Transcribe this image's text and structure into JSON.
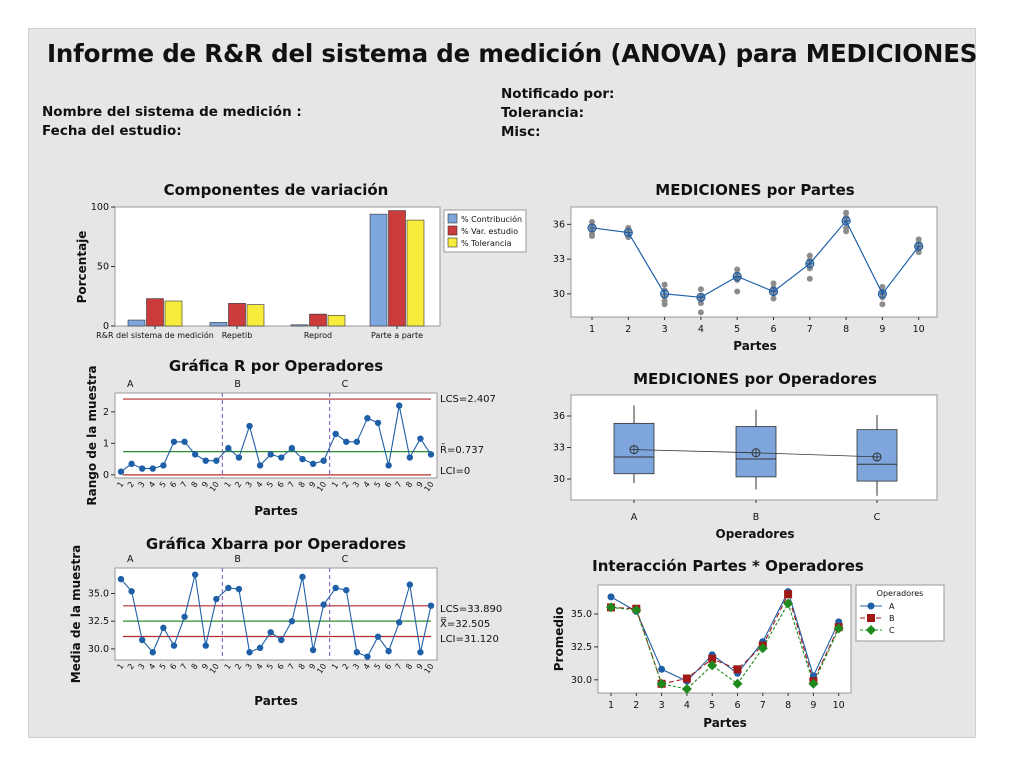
{
  "report": {
    "title": "Informe de R&R del sistema de medición  (ANOVA) para MEDICIONES",
    "left_fields": [
      "Nombre del sistema de medición :",
      "Fecha del estudio:"
    ],
    "right_fields": [
      "Notificado por:",
      "Tolerancia:",
      "Misc:"
    ]
  },
  "chart_data": [
    {
      "id": "components",
      "type": "bar",
      "title": "Componentes de variación",
      "ylabel": "Porcentaje",
      "ylim": [
        0,
        100
      ],
      "yticks": [
        0,
        50,
        100
      ],
      "categories": [
        "R&R del sistema de medición",
        "Repetib",
        "Reprod",
        "Parte a parte"
      ],
      "series": [
        {
          "name": "% Contribución",
          "color": "#7ea6dc",
          "values": [
            5,
            3,
            1,
            94
          ]
        },
        {
          "name": "% Var. estudio",
          "color": "#cc3b3b",
          "values": [
            23,
            19,
            10,
            97
          ]
        },
        {
          "name": "% Tolerancia",
          "color": "#f7ec3c",
          "values": [
            21,
            18,
            9,
            89
          ]
        }
      ],
      "legend": "right"
    },
    {
      "id": "rchart",
      "type": "line",
      "title": "Gráfica R por Operadores",
      "xlabel": "Partes",
      "ylabel": "Rango de la muestra",
      "ylim": [
        -0.1,
        2.6
      ],
      "yticks": [
        0,
        1,
        2
      ],
      "operators": [
        "A",
        "B",
        "C"
      ],
      "x": [
        "1",
        "2",
        "3",
        "4",
        "5",
        "6",
        "7",
        "8",
        "9",
        "10"
      ],
      "series": [
        {
          "name": "A",
          "values": [
            0.1,
            0.35,
            0.2,
            0.2,
            0.3,
            1.05,
            1.05,
            0.65,
            0.45,
            0.45
          ]
        },
        {
          "name": "B",
          "values": [
            0.85,
            0.55,
            1.55,
            0.3,
            0.65,
            0.55,
            0.85,
            0.5,
            0.35,
            0.45
          ]
        },
        {
          "name": "C",
          "values": [
            1.3,
            1.05,
            1.05,
            1.8,
            1.65,
            0.3,
            2.2,
            0.55,
            1.15,
            0.65
          ]
        }
      ],
      "limits": [
        {
          "label": "LCS=2.407",
          "value": 2.407,
          "color": "#b32c2c"
        },
        {
          "label": "R̄=0.737",
          "value": 0.737,
          "color": "#2e8b2e"
        },
        {
          "label": "LCI=0",
          "value": 0,
          "color": "#b32c2c"
        }
      ]
    },
    {
      "id": "xbar",
      "type": "line",
      "title": "Gráfica Xbarra por Operadores",
      "xlabel": "Partes",
      "ylabel": "Media de la muestra",
      "ylim": [
        29,
        37.3
      ],
      "yticks": [
        30.0,
        32.5,
        35.0
      ],
      "operators": [
        "A",
        "B",
        "C"
      ],
      "x": [
        "1",
        "2",
        "3",
        "4",
        "5",
        "6",
        "7",
        "8",
        "9",
        "10"
      ],
      "series": [
        {
          "name": "A",
          "values": [
            36.3,
            35.2,
            30.8,
            29.7,
            31.9,
            30.3,
            32.9,
            36.7,
            30.3,
            34.5
          ]
        },
        {
          "name": "B",
          "values": [
            35.5,
            35.4,
            29.7,
            30.1,
            31.5,
            30.8,
            32.5,
            36.5,
            29.9,
            34.0
          ]
        },
        {
          "name": "C",
          "values": [
            35.5,
            35.3,
            29.7,
            29.3,
            31.1,
            29.8,
            32.4,
            35.8,
            29.7,
            33.9
          ]
        }
      ],
      "limits": [
        {
          "label": "LCS=33.890",
          "value": 33.89,
          "color": "#b32c2c"
        },
        {
          "label": "X̿=32.505",
          "value": 32.505,
          "color": "#2e8b2e"
        },
        {
          "label": "LCI=31.120",
          "value": 31.12,
          "color": "#b32c2c"
        }
      ]
    },
    {
      "id": "byparts",
      "type": "scatter",
      "title": "MEDICIONES por Partes",
      "xlabel": "Partes",
      "ylim": [
        28,
        37.5
      ],
      "yticks": [
        30,
        33,
        36
      ],
      "x": [
        "1",
        "2",
        "3",
        "4",
        "5",
        "6",
        "7",
        "8",
        "9",
        "10"
      ],
      "means": [
        35.7,
        35.3,
        30.0,
        29.7,
        31.5,
        30.2,
        32.6,
        36.3,
        30.0,
        34.1
      ],
      "observations": [
        [
          36.2,
          35.9,
          35.5,
          35.2,
          35.0
        ],
        [
          35.7,
          35.4,
          35.0,
          34.9,
          35.2
        ],
        [
          30.8,
          30.3,
          29.4,
          29.1,
          29.8
        ],
        [
          30.4,
          29.8,
          29.2,
          28.4,
          29.6
        ],
        [
          32.1,
          31.7,
          31.4,
          30.2,
          31.2
        ],
        [
          30.9,
          30.5,
          30.1,
          29.6,
          30.3
        ],
        [
          33.3,
          32.9,
          32.2,
          31.3,
          32.6
        ],
        [
          37.0,
          36.6,
          36.3,
          35.7,
          35.4
        ],
        [
          30.6,
          30.2,
          29.7,
          29.1,
          30.0
        ],
        [
          34.7,
          34.4,
          34.0,
          33.6,
          34.2
        ]
      ]
    },
    {
      "id": "byoperators",
      "type": "box",
      "title": "MEDICIONES por Operadores",
      "xlabel": "Operadores",
      "ylim": [
        28,
        38
      ],
      "yticks": [
        30,
        33,
        36
      ],
      "categories": [
        "A",
        "B",
        "C"
      ],
      "boxes": [
        {
          "min": 29.6,
          "q1": 30.5,
          "median": 32.1,
          "q3": 35.3,
          "max": 37.0,
          "mean": 32.8
        },
        {
          "min": 29.0,
          "q1": 30.2,
          "median": 31.9,
          "q3": 35.0,
          "max": 36.6,
          "mean": 32.5
        },
        {
          "min": 28.4,
          "q1": 29.8,
          "median": 31.4,
          "q3": 34.7,
          "max": 36.1,
          "mean": 32.1
        }
      ]
    },
    {
      "id": "interaction",
      "type": "line",
      "title": "Interacción Partes * Operadores",
      "xlabel": "Partes",
      "ylabel": "Promedio",
      "ylim": [
        29,
        37.2
      ],
      "yticks": [
        30.0,
        32.5,
        35.0
      ],
      "x": [
        "1",
        "2",
        "3",
        "4",
        "5",
        "6",
        "7",
        "8",
        "9",
        "10"
      ],
      "legend_title": "Operadores",
      "series": [
        {
          "name": "A",
          "color": "#1f5fa8",
          "marker": "circle",
          "values": [
            36.3,
            35.2,
            30.8,
            29.9,
            31.9,
            30.5,
            32.9,
            36.7,
            30.3,
            34.4
          ]
        },
        {
          "name": "B",
          "color": "#a01818",
          "marker": "square",
          "values": [
            35.5,
            35.4,
            29.7,
            30.1,
            31.6,
            30.8,
            32.6,
            36.5,
            29.9,
            34.0
          ]
        },
        {
          "name": "C",
          "color": "#1e8a1e",
          "marker": "diamond",
          "values": [
            35.5,
            35.3,
            29.7,
            29.3,
            31.1,
            29.7,
            32.4,
            35.8,
            29.7,
            33.9
          ]
        }
      ]
    }
  ]
}
